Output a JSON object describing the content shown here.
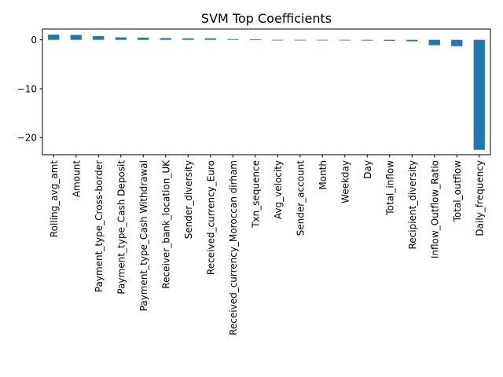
{
  "chart_data": {
    "type": "bar",
    "title": "SVM Top Coefficients",
    "xlabel": "",
    "ylabel": "",
    "ylim": [
      -23.5,
      2.2
    ],
    "yticks": [
      0,
      -10,
      -20
    ],
    "ytick_labels": [
      "0",
      "−10",
      "−20"
    ],
    "grid": false,
    "bar_color": "#1f77b4",
    "categories": [
      "Rolling_avg_amt",
      "Amount",
      "Payment_type_Cross-border",
      "Payment_type_Cash Deposit",
      "Payment_type_Cash Withdrawal",
      "Receiver_bank_location_UK",
      "Sender_diversity",
      "Received_currency_Euro",
      "Received_currency_Moroccan dirham",
      "Txn_sequence",
      "Avg_velocity",
      "Sender_account",
      "Month",
      "Weekday",
      "Day",
      "Total_inflow",
      "Recipient_diversity",
      "Inflow_Outflow_Ratio",
      "Total_outflow",
      "Daily_frequency"
    ],
    "values": [
      1.05,
      1.0,
      0.75,
      0.5,
      0.45,
      0.35,
      0.3,
      0.3,
      0.15,
      0.1,
      0.0,
      0.0,
      0.0,
      0.0,
      -0.15,
      -0.2,
      -0.3,
      -1.1,
      -1.3,
      -22.5
    ]
  }
}
